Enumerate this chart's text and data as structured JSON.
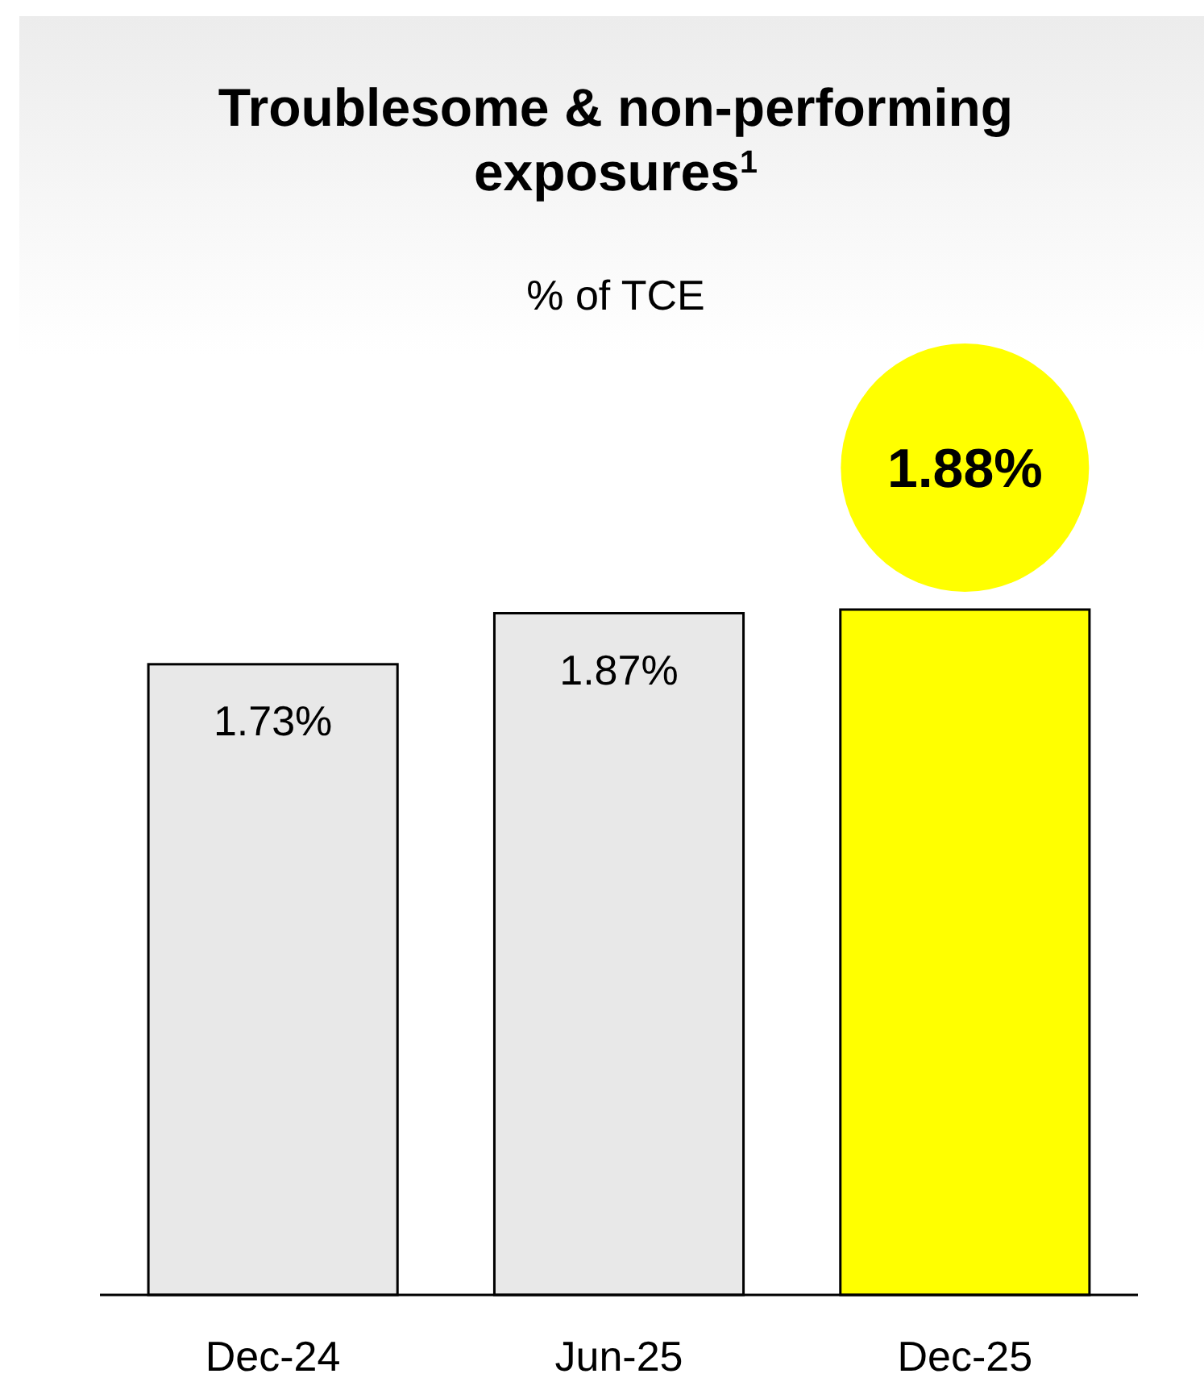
{
  "chart_data": {
    "type": "bar",
    "title": "Troublesome & non-performing exposures$^{1}$",
    "subtitle": "% of TCE",
    "categories": [
      "Dec-24",
      "Jun-25",
      "Dec-25"
    ],
    "values": [
      1.73,
      1.87,
      1.88
    ],
    "colors": [
      "#e8e8e8",
      "#e8e8e8",
      "#ffff00"
    ],
    "value_labels": [
      "1.73%",
      "1.87%",
      null
    ],
    "annotations": [
      {
        "text": "1.88%",
        "x": "Dec-25",
        "y": 1.88
      }
    ]
  }
}
